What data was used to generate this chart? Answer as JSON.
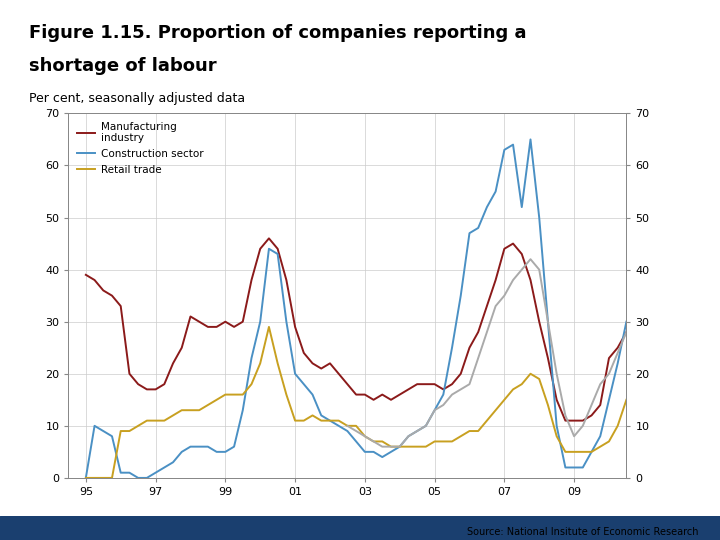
{
  "title_line1": "Figure 1.15. Proportion of companies reporting a",
  "title_line2": "shortage of labour",
  "subtitle": "Per cent, seasonally adjusted data",
  "source": "Source: National Insitute of Economic Research",
  "background_color": "#ffffff",
  "plot_background": "#ffffff",
  "grid_color": "#cccccc",
  "ylim": [
    0,
    70
  ],
  "yticks": [
    0,
    10,
    20,
    30,
    40,
    50,
    60,
    70
  ],
  "xtick_labels": [
    "95",
    "97",
    "99",
    "01",
    "03",
    "05",
    "07",
    "09"
  ],
  "xtick_positions": [
    1995.0,
    1997.0,
    1999.0,
    2001.0,
    2003.0,
    2005.0,
    2007.0,
    2009.0
  ],
  "xlim": [
    1994.5,
    2010.5
  ],
  "series": {
    "manufacturing": {
      "color": "#8b1a1a",
      "label": "Manufacturing\nindustry",
      "linewidth": 1.4,
      "data": [
        [
          1995.0,
          39
        ],
        [
          1995.25,
          38
        ],
        [
          1995.5,
          36
        ],
        [
          1995.75,
          35
        ],
        [
          1996.0,
          33
        ],
        [
          1996.25,
          20
        ],
        [
          1996.5,
          18
        ],
        [
          1996.75,
          17
        ],
        [
          1997.0,
          17
        ],
        [
          1997.25,
          18
        ],
        [
          1997.5,
          22
        ],
        [
          1997.75,
          25
        ],
        [
          1998.0,
          31
        ],
        [
          1998.25,
          30
        ],
        [
          1998.5,
          29
        ],
        [
          1998.75,
          29
        ],
        [
          1999.0,
          30
        ],
        [
          1999.25,
          29
        ],
        [
          1999.5,
          30
        ],
        [
          1999.75,
          38
        ],
        [
          2000.0,
          44
        ],
        [
          2000.25,
          46
        ],
        [
          2000.5,
          44
        ],
        [
          2000.75,
          38
        ],
        [
          2001.0,
          29
        ],
        [
          2001.25,
          24
        ],
        [
          2001.5,
          22
        ],
        [
          2001.75,
          21
        ],
        [
          2002.0,
          22
        ],
        [
          2002.25,
          20
        ],
        [
          2002.5,
          18
        ],
        [
          2002.75,
          16
        ],
        [
          2003.0,
          16
        ],
        [
          2003.25,
          15
        ],
        [
          2003.5,
          16
        ],
        [
          2003.75,
          15
        ],
        [
          2004.0,
          16
        ],
        [
          2004.25,
          17
        ],
        [
          2004.5,
          18
        ],
        [
          2004.75,
          18
        ],
        [
          2005.0,
          18
        ],
        [
          2005.25,
          17
        ],
        [
          2005.5,
          18
        ],
        [
          2005.75,
          20
        ],
        [
          2006.0,
          25
        ],
        [
          2006.25,
          28
        ],
        [
          2006.5,
          33
        ],
        [
          2006.75,
          38
        ],
        [
          2007.0,
          44
        ],
        [
          2007.25,
          45
        ],
        [
          2007.5,
          43
        ],
        [
          2007.75,
          38
        ],
        [
          2008.0,
          30
        ],
        [
          2008.25,
          23
        ],
        [
          2008.5,
          15
        ],
        [
          2008.75,
          11
        ],
        [
          2009.0,
          11
        ],
        [
          2009.25,
          11
        ],
        [
          2009.5,
          12
        ],
        [
          2009.75,
          14
        ],
        [
          2010.0,
          23
        ],
        [
          2010.25,
          25
        ],
        [
          2010.5,
          28
        ]
      ]
    },
    "construction": {
      "color": "#4a90c4",
      "label": "Construction sector",
      "linewidth": 1.4,
      "data": [
        [
          1995.0,
          0
        ],
        [
          1995.25,
          10
        ],
        [
          1995.5,
          9
        ],
        [
          1995.75,
          8
        ],
        [
          1996.0,
          1
        ],
        [
          1996.25,
          1
        ],
        [
          1996.5,
          0
        ],
        [
          1996.75,
          0
        ],
        [
          1997.0,
          1
        ],
        [
          1997.25,
          2
        ],
        [
          1997.5,
          3
        ],
        [
          1997.75,
          5
        ],
        [
          1998.0,
          6
        ],
        [
          1998.25,
          6
        ],
        [
          1998.5,
          6
        ],
        [
          1998.75,
          5
        ],
        [
          1999.0,
          5
        ],
        [
          1999.25,
          6
        ],
        [
          1999.5,
          13
        ],
        [
          1999.75,
          23
        ],
        [
          2000.0,
          30
        ],
        [
          2000.25,
          44
        ],
        [
          2000.5,
          43
        ],
        [
          2000.75,
          30
        ],
        [
          2001.0,
          20
        ],
        [
          2001.25,
          18
        ],
        [
          2001.5,
          16
        ],
        [
          2001.75,
          12
        ],
        [
          2002.0,
          11
        ],
        [
          2002.25,
          10
        ],
        [
          2002.5,
          9
        ],
        [
          2002.75,
          7
        ],
        [
          2003.0,
          5
        ],
        [
          2003.25,
          5
        ],
        [
          2003.5,
          4
        ],
        [
          2003.75,
          5
        ],
        [
          2004.0,
          6
        ],
        [
          2004.25,
          8
        ],
        [
          2004.5,
          9
        ],
        [
          2004.75,
          10
        ],
        [
          2005.0,
          13
        ],
        [
          2005.25,
          16
        ],
        [
          2005.5,
          25
        ],
        [
          2005.75,
          35
        ],
        [
          2006.0,
          47
        ],
        [
          2006.25,
          48
        ],
        [
          2006.5,
          52
        ],
        [
          2006.75,
          55
        ],
        [
          2007.0,
          63
        ],
        [
          2007.25,
          64
        ],
        [
          2007.5,
          52
        ],
        [
          2007.75,
          65
        ],
        [
          2008.0,
          50
        ],
        [
          2008.25,
          30
        ],
        [
          2008.5,
          10
        ],
        [
          2008.75,
          2
        ],
        [
          2009.0,
          2
        ],
        [
          2009.25,
          2
        ],
        [
          2009.5,
          5
        ],
        [
          2009.75,
          8
        ],
        [
          2010.0,
          15
        ],
        [
          2010.25,
          22
        ],
        [
          2010.5,
          30
        ]
      ]
    },
    "retail": {
      "color": "#c8a020",
      "label": "Retail trade",
      "linewidth": 1.4,
      "data": [
        [
          1995.0,
          0
        ],
        [
          1995.25,
          0
        ],
        [
          1995.5,
          0
        ],
        [
          1995.75,
          0
        ],
        [
          1996.0,
          9
        ],
        [
          1996.25,
          9
        ],
        [
          1996.5,
          10
        ],
        [
          1996.75,
          11
        ],
        [
          1997.0,
          11
        ],
        [
          1997.25,
          11
        ],
        [
          1997.5,
          12
        ],
        [
          1997.75,
          13
        ],
        [
          1998.0,
          13
        ],
        [
          1998.25,
          13
        ],
        [
          1998.5,
          14
        ],
        [
          1998.75,
          15
        ],
        [
          1999.0,
          16
        ],
        [
          1999.25,
          16
        ],
        [
          1999.5,
          16
        ],
        [
          1999.75,
          18
        ],
        [
          2000.0,
          22
        ],
        [
          2000.25,
          29
        ],
        [
          2000.5,
          22
        ],
        [
          2000.75,
          16
        ],
        [
          2001.0,
          11
        ],
        [
          2001.25,
          11
        ],
        [
          2001.5,
          12
        ],
        [
          2001.75,
          11
        ],
        [
          2002.0,
          11
        ],
        [
          2002.25,
          11
        ],
        [
          2002.5,
          10
        ],
        [
          2002.75,
          10
        ],
        [
          2003.0,
          8
        ],
        [
          2003.25,
          7
        ],
        [
          2003.5,
          7
        ],
        [
          2003.75,
          6
        ],
        [
          2004.0,
          6
        ],
        [
          2004.25,
          6
        ],
        [
          2004.5,
          6
        ],
        [
          2004.75,
          6
        ],
        [
          2005.0,
          7
        ],
        [
          2005.25,
          7
        ],
        [
          2005.5,
          7
        ],
        [
          2005.75,
          8
        ],
        [
          2006.0,
          9
        ],
        [
          2006.25,
          9
        ],
        [
          2006.5,
          11
        ],
        [
          2006.75,
          13
        ],
        [
          2007.0,
          15
        ],
        [
          2007.25,
          17
        ],
        [
          2007.5,
          18
        ],
        [
          2007.75,
          20
        ],
        [
          2008.0,
          19
        ],
        [
          2008.25,
          14
        ],
        [
          2008.5,
          8
        ],
        [
          2008.75,
          5
        ],
        [
          2009.0,
          5
        ],
        [
          2009.25,
          5
        ],
        [
          2009.5,
          5
        ],
        [
          2009.75,
          6
        ],
        [
          2010.0,
          7
        ],
        [
          2010.25,
          10
        ],
        [
          2010.5,
          15
        ]
      ]
    },
    "grey_series": {
      "color": "#aaaaaa",
      "linewidth": 1.4,
      "data": [
        [
          2002.5,
          10
        ],
        [
          2002.75,
          9
        ],
        [
          2003.0,
          8
        ],
        [
          2003.25,
          7
        ],
        [
          2003.5,
          6
        ],
        [
          2003.75,
          6
        ],
        [
          2004.0,
          6
        ],
        [
          2004.25,
          8
        ],
        [
          2004.5,
          9
        ],
        [
          2004.75,
          10
        ],
        [
          2005.0,
          13
        ],
        [
          2005.25,
          14
        ],
        [
          2005.5,
          16
        ],
        [
          2005.75,
          17
        ],
        [
          2006.0,
          18
        ],
        [
          2006.25,
          23
        ],
        [
          2006.5,
          28
        ],
        [
          2006.75,
          33
        ],
        [
          2007.0,
          35
        ],
        [
          2007.25,
          38
        ],
        [
          2007.5,
          40
        ],
        [
          2007.75,
          42
        ],
        [
          2008.0,
          40
        ],
        [
          2008.25,
          30
        ],
        [
          2008.5,
          20
        ],
        [
          2008.75,
          12
        ],
        [
          2009.0,
          8
        ],
        [
          2009.25,
          10
        ],
        [
          2009.5,
          14
        ],
        [
          2009.75,
          18
        ],
        [
          2010.0,
          20
        ],
        [
          2010.25,
          24
        ],
        [
          2010.5,
          28
        ]
      ]
    }
  },
  "bottom_bar_color": "#1a3f6f",
  "logo_rect_color": "#1a3f6f",
  "title_fontsize": 13,
  "subtitle_fontsize": 9,
  "tick_fontsize": 8
}
